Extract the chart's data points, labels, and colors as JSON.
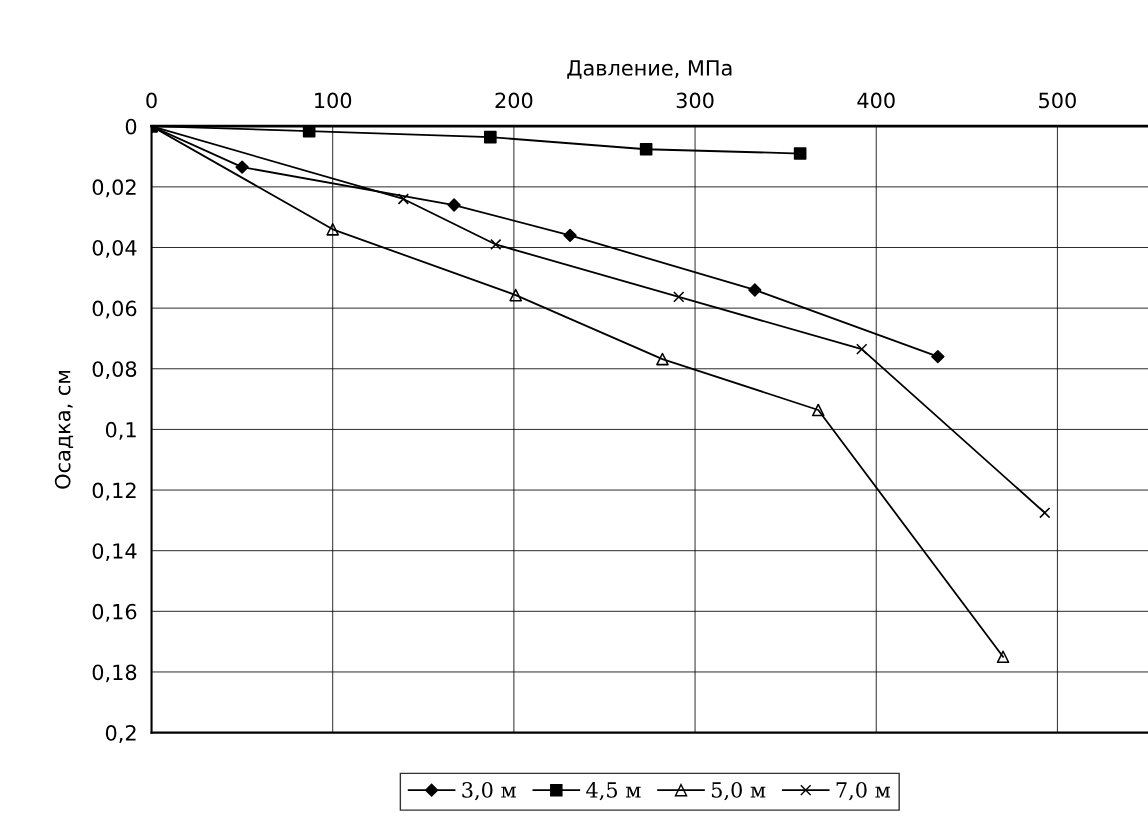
{
  "chart_data": {
    "type": "line",
    "xlabel": "Давление, МПа",
    "ylabel": "Осадка, см",
    "xlim": [
      0,
      550
    ],
    "xticks": [
      0,
      100,
      200,
      300,
      400,
      500
    ],
    "ylim": [
      0.2,
      0
    ],
    "yticks": [
      {
        "value": 0,
        "label": "0"
      },
      {
        "value": 0.02,
        "label": "0,02"
      },
      {
        "value": 0.04,
        "label": "0,04"
      },
      {
        "value": 0.06,
        "label": "0,06"
      },
      {
        "value": 0.08,
        "label": "0,08"
      },
      {
        "value": 0.1,
        "label": "0,1"
      },
      {
        "value": 0.12,
        "label": "0,12"
      },
      {
        "value": 0.14,
        "label": "0,14"
      },
      {
        "value": 0.16,
        "label": "0,16"
      },
      {
        "value": 0.18,
        "label": "0,18"
      },
      {
        "value": 0.2,
        "label": "0,2"
      }
    ],
    "grid": true,
    "legend": "bottom",
    "series": [
      {
        "name": "3,0 м",
        "color": "#000000",
        "marker": "diamond",
        "x": [
          0,
          50,
          167,
          231,
          333,
          434
        ],
        "values": [
          0,
          0.0135,
          0.026,
          0.036,
          0.054,
          0.076
        ]
      },
      {
        "name": "4,5 м",
        "color": "#000000",
        "marker": "square",
        "x": [
          0,
          87,
          187,
          273,
          358
        ],
        "values": [
          0,
          0.0016,
          0.0036,
          0.0076,
          0.009
        ]
      },
      {
        "name": "5,0 м",
        "color": "#000000",
        "marker": "triangle",
        "x": [
          0,
          100,
          201,
          282,
          368,
          470
        ],
        "values": [
          0,
          0.034,
          0.0557,
          0.0768,
          0.0936,
          0.175
        ]
      },
      {
        "name": "7,0 м",
        "color": "#000000",
        "marker": "cross",
        "x": [
          0,
          139,
          190,
          291,
          392,
          493
        ],
        "values": [
          0,
          0.024,
          0.039,
          0.0563,
          0.0735,
          0.1275
        ]
      }
    ]
  }
}
